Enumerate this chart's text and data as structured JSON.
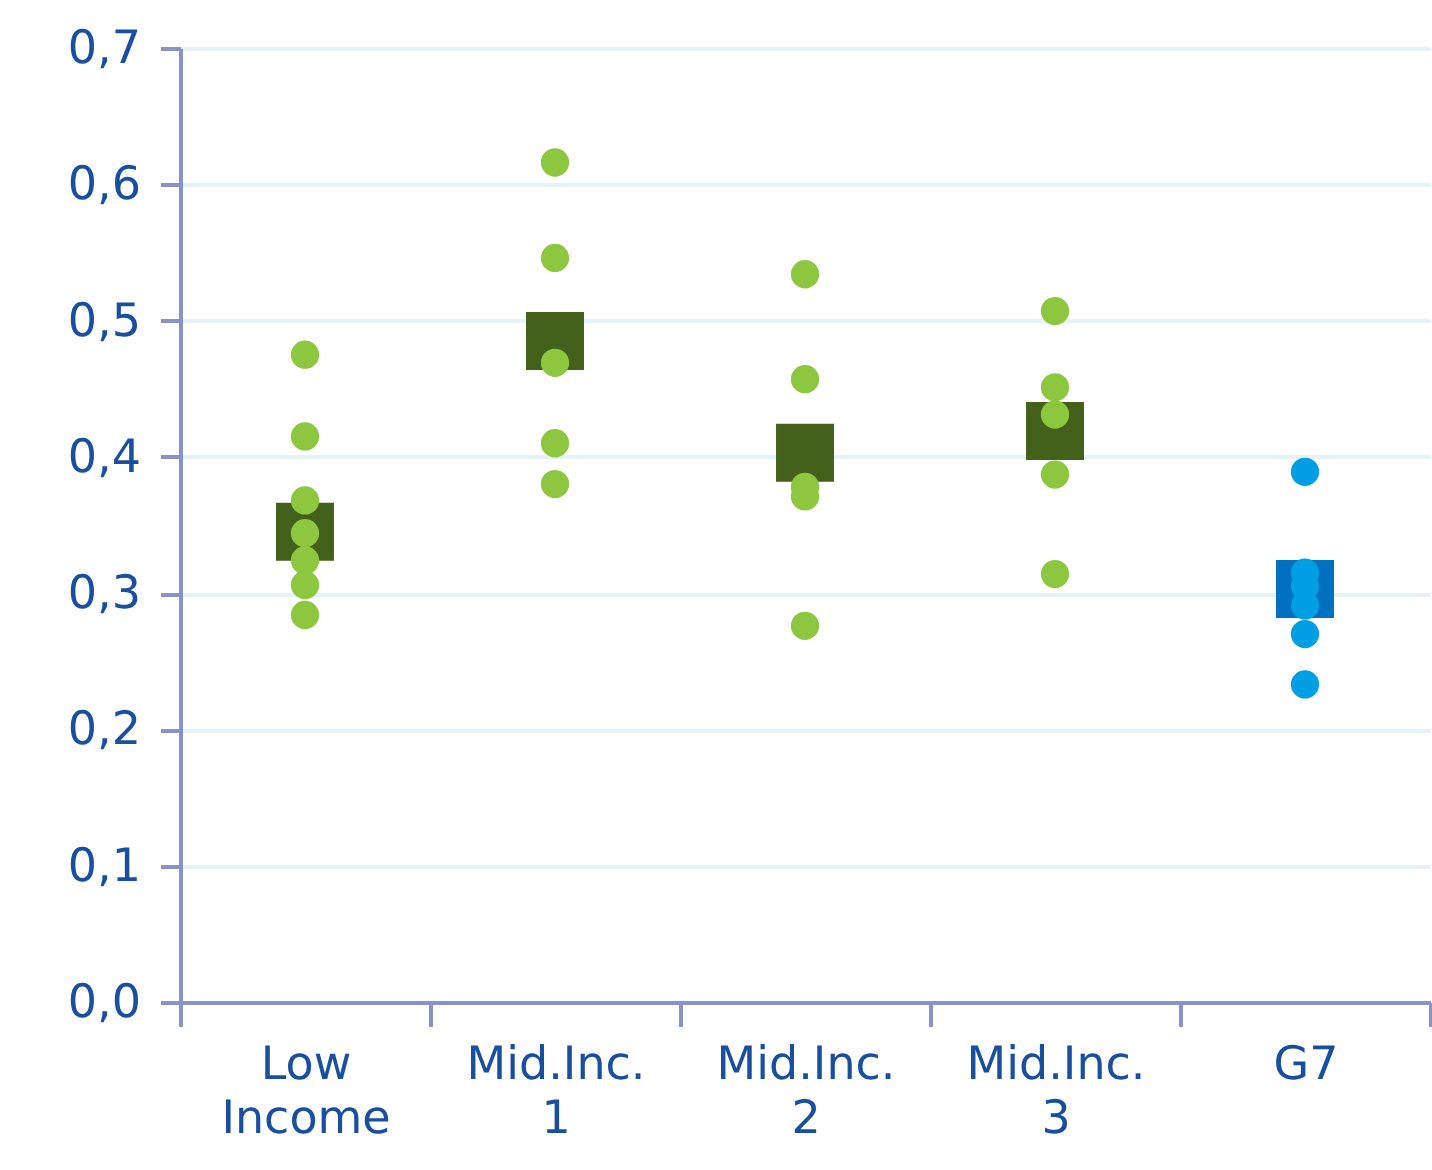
{
  "chart_data": {
    "type": "scatter",
    "categories": [
      "Low Income",
      "Mid.Inc. 1",
      "Mid.Inc. 2",
      "Mid.Inc. 3",
      "G7"
    ],
    "ylim": [
      0,
      0.7
    ],
    "yticks": [
      {
        "value": 0,
        "label": "0,0"
      },
      {
        "value": 0.1,
        "label": "0,1"
      },
      {
        "value": 0.2,
        "label": "0,2"
      },
      {
        "value": 0.3,
        "label": "0,3"
      },
      {
        "value": 0.4,
        "label": "0,4"
      },
      {
        "value": 0.5,
        "label": "0,5"
      },
      {
        "value": 0.6,
        "label": "0,6"
      },
      {
        "value": 0.7,
        "label": "0,7"
      }
    ],
    "grid": "y",
    "series": [
      {
        "type": "scatter",
        "marker": "square",
        "x": [
          "Low Income",
          "Mid.Inc. 1",
          "Mid.Inc. 2",
          "Mid.Inc. 3",
          "G7"
        ],
        "values": [
          0.345,
          0.485,
          0.403,
          0.419,
          0.303
        ],
        "colors": [
          "#43611a",
          "#43611a",
          "#43611a",
          "#43611a",
          "#0070c0"
        ]
      },
      {
        "type": "scatter",
        "marker": "circle",
        "x": [
          "Low Income",
          "Low Income",
          "Low Income",
          "Low Income",
          "Low Income",
          "Low Income",
          "Low Income",
          "Mid.Inc. 1",
          "Mid.Inc. 1",
          "Mid.Inc. 1",
          "Mid.Inc. 1",
          "Mid.Inc. 1",
          "Mid.Inc. 2",
          "Mid.Inc. 2",
          "Mid.Inc. 2",
          "Mid.Inc. 2",
          "Mid.Inc. 2",
          "Mid.Inc. 3",
          "Mid.Inc. 3",
          "Mid.Inc. 3",
          "Mid.Inc. 3",
          "Mid.Inc. 3",
          "G7",
          "G7",
          "G7",
          "G7",
          "G7",
          "G7"
        ],
        "values": [
          0.475,
          0.415,
          0.368,
          0.344,
          0.324,
          0.306,
          0.284,
          0.616,
          0.546,
          0.469,
          0.41,
          0.38,
          0.534,
          0.457,
          0.378,
          0.371,
          0.276,
          0.507,
          0.451,
          0.431,
          0.387,
          0.314,
          0.389,
          0.315,
          0.305,
          0.291,
          0.27,
          0.233
        ],
        "colors": [
          "#8dc63f",
          "#8dc63f",
          "#8dc63f",
          "#8dc63f",
          "#8dc63f",
          "#8dc63f",
          "#8dc63f",
          "#8dc63f",
          "#8dc63f",
          "#8dc63f",
          "#8dc63f",
          "#8dc63f",
          "#8dc63f",
          "#8dc63f",
          "#8dc63f",
          "#8dc63f",
          "#8dc63f",
          "#8dc63f",
          "#8dc63f",
          "#8dc63f",
          "#8dc63f",
          "#8dc63f",
          "#009fe3",
          "#009fe3",
          "#009fe3",
          "#009fe3",
          "#009fe3",
          "#009fe3"
        ]
      }
    ]
  }
}
